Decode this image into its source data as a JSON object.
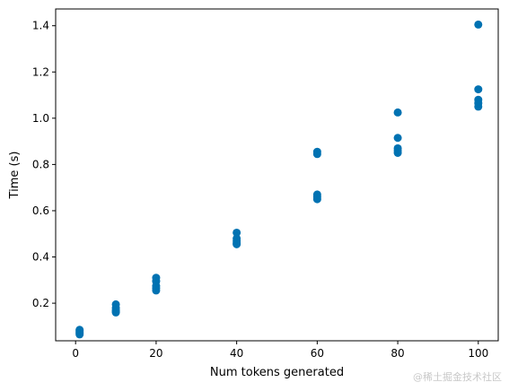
{
  "chart_data": {
    "type": "scatter",
    "title": "",
    "xlabel": "Num tokens generated",
    "ylabel": "Time (s)",
    "xlim": [
      -4.95,
      104.95
    ],
    "ylim": [
      0.0375,
      1.4725
    ],
    "xticks": [
      0,
      20,
      40,
      60,
      80,
      100
    ],
    "yticks": [
      0.2,
      0.4,
      0.6,
      0.8,
      1.0,
      1.2,
      1.4
    ],
    "ytick_labels": [
      "0.2",
      "0.4",
      "0.6",
      "0.8",
      "1.0",
      "1.2",
      "1.4"
    ],
    "grid": false,
    "legend": null,
    "marker_color": "#0072b2",
    "points": [
      {
        "x": 1,
        "y": 0.065
      },
      {
        "x": 1,
        "y": 0.07
      },
      {
        "x": 1,
        "y": 0.075
      },
      {
        "x": 1,
        "y": 0.08
      },
      {
        "x": 1,
        "y": 0.085
      },
      {
        "x": 10,
        "y": 0.16
      },
      {
        "x": 10,
        "y": 0.165
      },
      {
        "x": 10,
        "y": 0.17
      },
      {
        "x": 10,
        "y": 0.18
      },
      {
        "x": 10,
        "y": 0.195
      },
      {
        "x": 20,
        "y": 0.255
      },
      {
        "x": 20,
        "y": 0.265
      },
      {
        "x": 20,
        "y": 0.275
      },
      {
        "x": 20,
        "y": 0.295
      },
      {
        "x": 20,
        "y": 0.31
      },
      {
        "x": 40,
        "y": 0.455
      },
      {
        "x": 40,
        "y": 0.46
      },
      {
        "x": 40,
        "y": 0.47
      },
      {
        "x": 40,
        "y": 0.48
      },
      {
        "x": 40,
        "y": 0.505
      },
      {
        "x": 60,
        "y": 0.65
      },
      {
        "x": 60,
        "y": 0.66
      },
      {
        "x": 60,
        "y": 0.67
      },
      {
        "x": 60,
        "y": 0.845
      },
      {
        "x": 60,
        "y": 0.855
      },
      {
        "x": 80,
        "y": 0.85
      },
      {
        "x": 80,
        "y": 0.86
      },
      {
        "x": 80,
        "y": 0.87
      },
      {
        "x": 80,
        "y": 0.915
      },
      {
        "x": 80,
        "y": 1.025
      },
      {
        "x": 100,
        "y": 1.05
      },
      {
        "x": 100,
        "y": 1.065
      },
      {
        "x": 100,
        "y": 1.08
      },
      {
        "x": 100,
        "y": 1.125
      },
      {
        "x": 100,
        "y": 1.405
      }
    ]
  },
  "watermark": "@稀土掘金技术社区"
}
